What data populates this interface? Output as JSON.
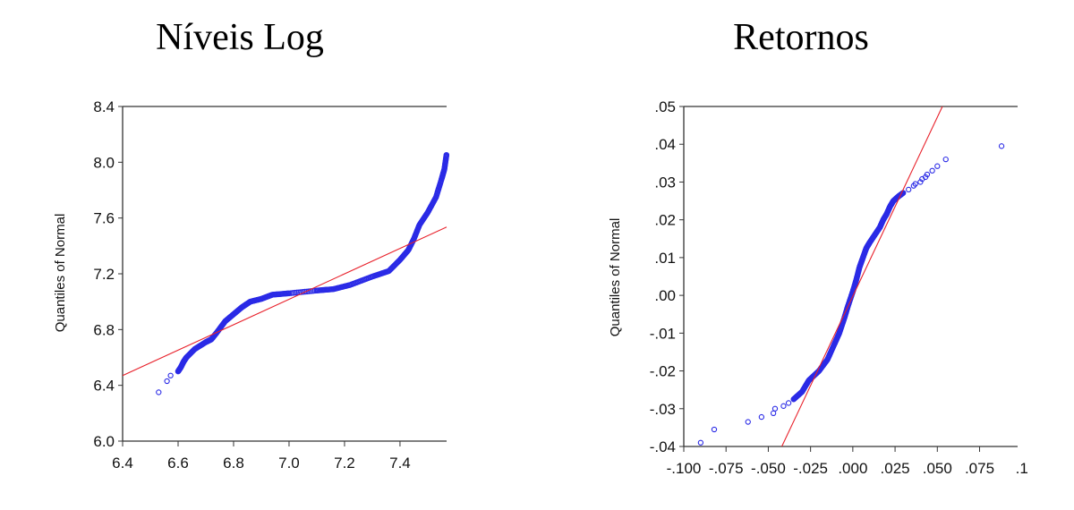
{
  "chart_data": [
    {
      "type": "scatter",
      "title": "Níveis Log",
      "xlabel": "",
      "ylabel": "Quantiles of Normal",
      "xlim": [
        6.4,
        7.568
      ],
      "ylim": [
        6.0,
        8.4
      ],
      "xticks": [
        "6.4",
        "6.6",
        "6.8",
        "7.0",
        "7.2",
        "7.4"
      ],
      "xtick_values": [
        6.4,
        6.6,
        6.8,
        7.0,
        7.2,
        7.4
      ],
      "yticks": [
        "6.0",
        "6.4",
        "6.8",
        "7.2",
        "7.6",
        "8.0",
        "8.4"
      ],
      "ytick_values": [
        6.0,
        6.4,
        6.8,
        7.2,
        7.6,
        8.0,
        8.4
      ],
      "grid": false,
      "reference_line": {
        "from": [
          6.4,
          6.47
        ],
        "to": [
          7.568,
          7.535
        ],
        "color": "#e8202a"
      },
      "point_color": "#2a2ae6",
      "outliers": [
        [
          6.53,
          6.35
        ],
        [
          6.56,
          6.43
        ],
        [
          6.573,
          6.47
        ]
      ],
      "curve": [
        [
          6.6,
          6.5
        ],
        [
          6.61,
          6.53
        ],
        [
          6.62,
          6.57
        ],
        [
          6.63,
          6.6
        ],
        [
          6.66,
          6.66
        ],
        [
          6.7,
          6.71
        ],
        [
          6.72,
          6.73
        ],
        [
          6.74,
          6.78
        ],
        [
          6.77,
          6.86
        ],
        [
          6.8,
          6.91
        ],
        [
          6.83,
          6.96
        ],
        [
          6.86,
          7.0
        ],
        [
          6.9,
          7.02
        ],
        [
          6.94,
          7.05
        ],
        [
          7.0,
          7.06
        ],
        [
          7.1,
          7.08
        ],
        [
          7.16,
          7.09
        ],
        [
          7.22,
          7.12
        ],
        [
          7.3,
          7.18
        ],
        [
          7.36,
          7.22
        ],
        [
          7.4,
          7.3
        ],
        [
          7.43,
          7.37
        ],
        [
          7.45,
          7.45
        ],
        [
          7.47,
          7.55
        ],
        [
          7.5,
          7.64
        ],
        [
          7.53,
          7.75
        ],
        [
          7.55,
          7.88
        ],
        [
          7.56,
          7.95
        ],
        [
          7.568,
          8.06
        ]
      ]
    },
    {
      "type": "scatter",
      "title": "Retornos",
      "xlabel": "",
      "ylabel": "Quantiles of Normal",
      "xlim": [
        -0.1,
        0.0975
      ],
      "ylim": [
        -0.04,
        0.05
      ],
      "xticks": [
        "-.100",
        "-.075",
        "-.050",
        "-.025",
        ".000",
        ".025",
        ".050",
        ".075",
        ".1"
      ],
      "xtick_values": [
        -0.1,
        -0.075,
        -0.05,
        -0.025,
        0,
        0.025,
        0.05,
        0.075,
        0.1
      ],
      "yticks": [
        "-.04",
        "-.03",
        "-.02",
        "-.01",
        ".00",
        ".01",
        ".02",
        ".03",
        ".04",
        ".05"
      ],
      "ytick_values": [
        -0.04,
        -0.03,
        -0.02,
        -0.01,
        0,
        0.01,
        0.02,
        0.03,
        0.04,
        0.05
      ],
      "grid": false,
      "reference_line": {
        "from": [
          -0.042,
          -0.04
        ],
        "to": [
          0.053,
          0.05
        ],
        "color": "#e8202a"
      },
      "point_color": "#2a2ae6",
      "outliers": [
        [
          -0.09,
          -0.039
        ],
        [
          -0.082,
          -0.0355
        ],
        [
          -0.062,
          -0.0335
        ],
        [
          -0.054,
          -0.0322
        ],
        [
          -0.047,
          -0.0312
        ],
        [
          -0.046,
          -0.03
        ],
        [
          -0.041,
          -0.0293
        ],
        [
          -0.038,
          -0.0285
        ],
        [
          0.033,
          0.028
        ],
        [
          0.036,
          0.029
        ],
        [
          0.037,
          0.0295
        ],
        [
          0.04,
          0.03
        ],
        [
          0.041,
          0.0308
        ],
        [
          0.043,
          0.0313
        ],
        [
          0.044,
          0.032
        ],
        [
          0.047,
          0.033
        ],
        [
          0.05,
          0.0342
        ],
        [
          0.055,
          0.036
        ],
        [
          0.088,
          0.0395
        ]
      ],
      "curve": [
        [
          -0.035,
          -0.0275
        ],
        [
          -0.03,
          -0.0255
        ],
        [
          -0.026,
          -0.0225
        ],
        [
          -0.02,
          -0.02
        ],
        [
          -0.015,
          -0.017
        ],
        [
          -0.011,
          -0.013
        ],
        [
          -0.008,
          -0.01
        ],
        [
          -0.005,
          -0.006
        ],
        [
          -0.003,
          -0.003
        ],
        [
          0.0,
          0.001
        ],
        [
          0.002,
          0.004
        ],
        [
          0.004,
          0.0075
        ],
        [
          0.006,
          0.01
        ],
        [
          0.008,
          0.0125
        ],
        [
          0.01,
          0.014
        ],
        [
          0.013,
          0.016
        ],
        [
          0.016,
          0.018
        ],
        [
          0.018,
          0.02
        ],
        [
          0.02,
          0.0215
        ],
        [
          0.022,
          0.0235
        ],
        [
          0.024,
          0.025
        ],
        [
          0.027,
          0.0262
        ],
        [
          0.03,
          0.0272
        ]
      ]
    }
  ]
}
